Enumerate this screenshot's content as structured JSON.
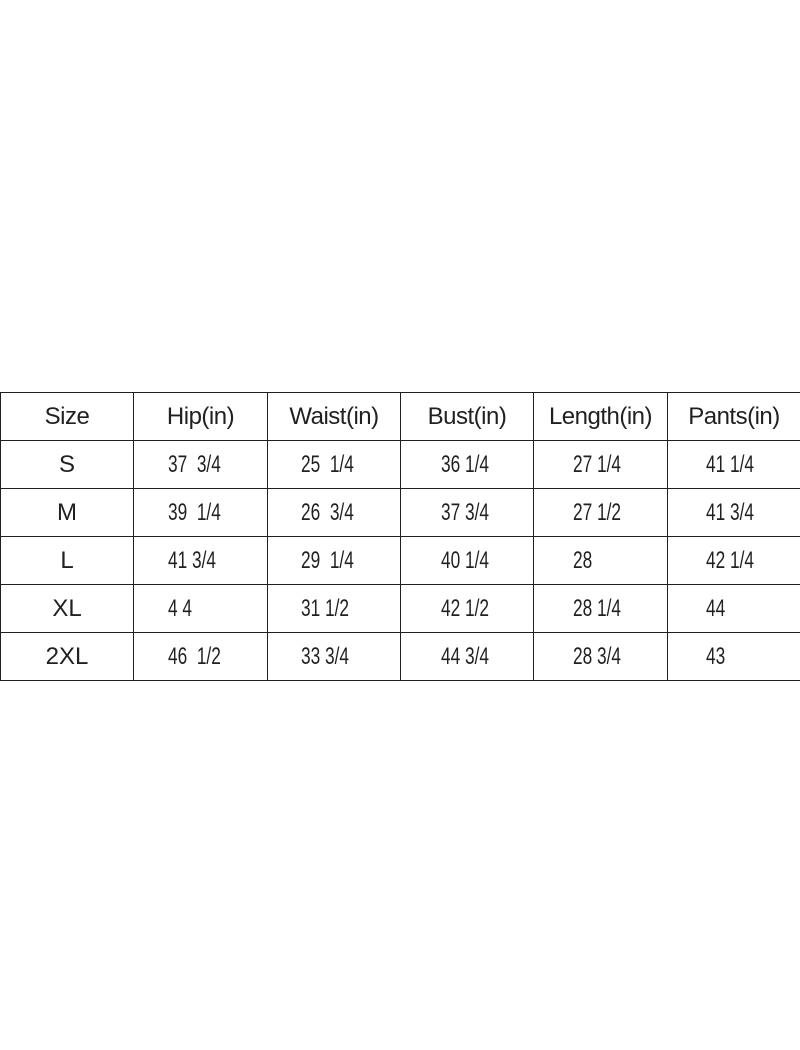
{
  "table": {
    "headers": [
      "Size",
      "Hip(in)",
      "Waist(in)",
      "Bust(in)",
      "Length(in)",
      "Pants(in)"
    ],
    "rows": [
      [
        "S",
        "37  3/4",
        "25  1/4",
        "36 1/4",
        "27 1/4",
        "41 1/4"
      ],
      [
        "M",
        "39  1/4",
        "26  3/4",
        "37 3/4",
        "27 1/2",
        "41 3/4"
      ],
      [
        "L",
        "41 3/4",
        "29  1/4",
        "40 1/4",
        "28",
        "42 1/4"
      ],
      [
        "XL",
        "4 4",
        "31 1/2",
        "42 1/2",
        "28 1/4",
        "44"
      ],
      [
        "2XL",
        "46  1/2",
        "33 3/4",
        "44 3/4",
        "28 3/4",
        "43"
      ]
    ]
  }
}
